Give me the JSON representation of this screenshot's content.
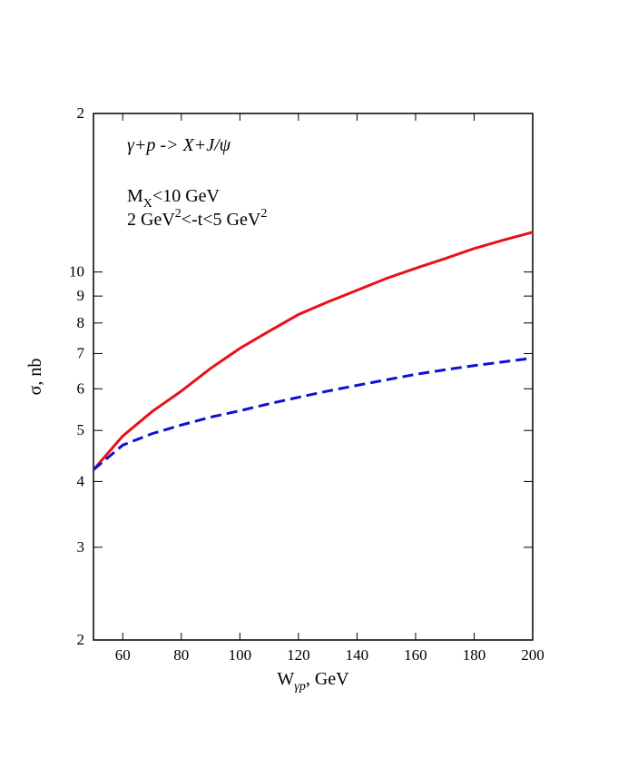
{
  "chart_data": {
    "type": "line",
    "x": [
      50,
      60,
      70,
      80,
      90,
      100,
      110,
      120,
      130,
      140,
      150,
      160,
      170,
      180,
      190,
      200
    ],
    "series": [
      {
        "color": "#e8101a",
        "style": "solid",
        "values": [
          4.21,
          4.88,
          5.43,
          5.94,
          6.56,
          7.16,
          7.72,
          8.3,
          8.77,
          9.23,
          9.72,
          10.16,
          10.6,
          11.08,
          11.5,
          11.9
        ]
      },
      {
        "color": "#1010d0",
        "style": "dashed",
        "values": [
          4.21,
          4.69,
          4.93,
          5.12,
          5.3,
          5.45,
          5.62,
          5.78,
          5.94,
          6.09,
          6.24,
          6.39,
          6.52,
          6.64,
          6.75,
          6.86
        ]
      }
    ],
    "xlim": [
      50,
      200
    ],
    "xticks": [
      60,
      80,
      100,
      120,
      140,
      160,
      180,
      200
    ],
    "ylim": [
      2,
      20
    ],
    "yscale": "log",
    "yticks": [
      2,
      3,
      4,
      5,
      6,
      7,
      8,
      9,
      10,
      {
        "value": 20,
        "label": "2"
      }
    ],
    "xlabel": [
      "W",
      "γp",
      ", GeV"
    ],
    "ylabel": "σ, nb",
    "annotations": [
      [
        "γ+p -> X+J/ψ"
      ],
      [
        "M",
        "X",
        "<10 GeV"
      ],
      [
        "2 GeV",
        "2",
        "<-t<5 GeV",
        "2"
      ]
    ]
  }
}
